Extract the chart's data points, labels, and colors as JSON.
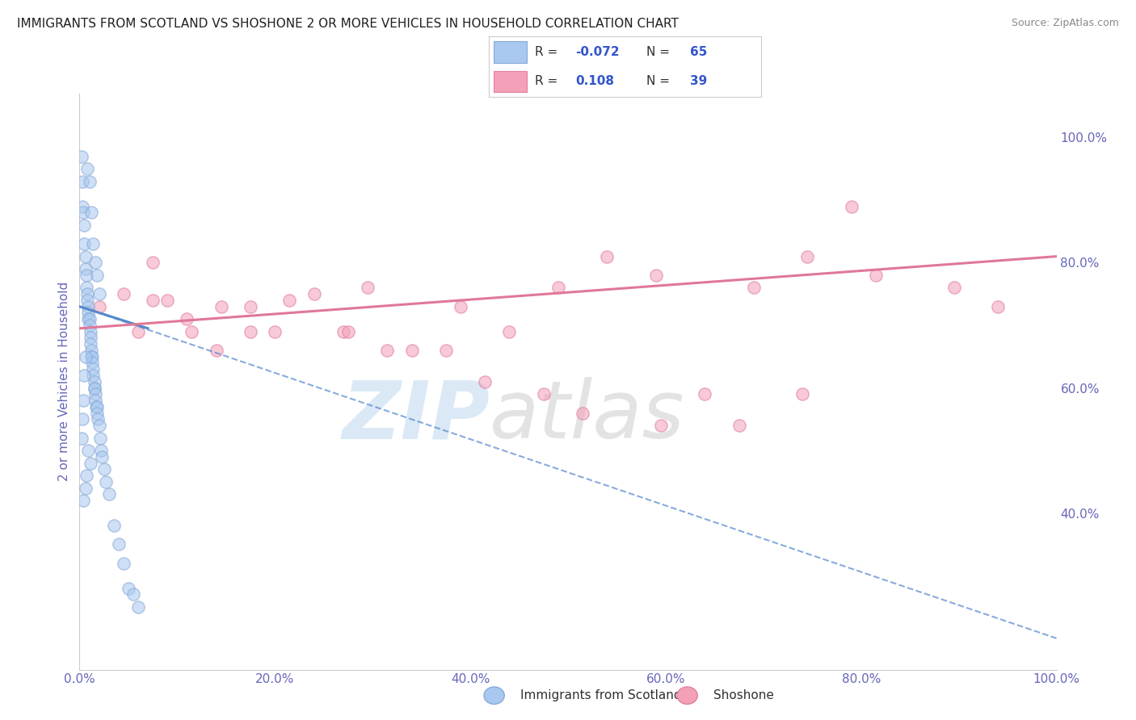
{
  "title": "IMMIGRANTS FROM SCOTLAND VS SHOSHONE 2 OR MORE VEHICLES IN HOUSEHOLD CORRELATION CHART",
  "source": "Source: ZipAtlas.com",
  "ylabel": "2 or more Vehicles in Household",
  "xlim": [
    0,
    1.0
  ],
  "ylim": [
    0.15,
    1.07
  ],
  "xticks": [
    0.0,
    0.1,
    0.2,
    0.3,
    0.4,
    0.5,
    0.6,
    0.7,
    0.8,
    0.9,
    1.0
  ],
  "xticklabels": [
    "0.0%",
    "",
    "20.0%",
    "",
    "40.0%",
    "",
    "60.0%",
    "",
    "80.0%",
    "",
    "100.0%"
  ],
  "yticks_right": [
    1.0,
    0.8,
    0.6,
    0.4
  ],
  "yticklabels_right": [
    "100.0%",
    "80.0%",
    "60.0%",
    "40.0%"
  ],
  "legend_entries": [
    {
      "label": "Immigrants from Scotland",
      "color": "#a8c8f0",
      "R": "-0.072",
      "N": "65"
    },
    {
      "label": "Shoshone",
      "color": "#f4a0b8",
      "R": "0.108",
      "N": "39"
    }
  ],
  "blue_scatter_x": [
    0.002,
    0.003,
    0.003,
    0.004,
    0.005,
    0.005,
    0.006,
    0.006,
    0.007,
    0.007,
    0.008,
    0.008,
    0.009,
    0.009,
    0.009,
    0.01,
    0.01,
    0.011,
    0.011,
    0.011,
    0.012,
    0.012,
    0.013,
    0.013,
    0.014,
    0.014,
    0.015,
    0.015,
    0.015,
    0.016,
    0.016,
    0.017,
    0.018,
    0.018,
    0.019,
    0.02,
    0.021,
    0.022,
    0.023,
    0.025,
    0.027,
    0.03,
    0.035,
    0.04,
    0.045,
    0.05,
    0.055,
    0.06,
    0.008,
    0.01,
    0.012,
    0.014,
    0.016,
    0.018,
    0.02,
    0.006,
    0.005,
    0.004,
    0.003,
    0.002,
    0.009,
    0.011,
    0.007,
    0.006,
    0.004
  ],
  "blue_scatter_y": [
    0.97,
    0.93,
    0.89,
    0.88,
    0.86,
    0.83,
    0.81,
    0.79,
    0.78,
    0.76,
    0.75,
    0.74,
    0.73,
    0.72,
    0.71,
    0.71,
    0.7,
    0.69,
    0.68,
    0.67,
    0.66,
    0.65,
    0.65,
    0.64,
    0.63,
    0.62,
    0.61,
    0.6,
    0.6,
    0.59,
    0.58,
    0.57,
    0.57,
    0.56,
    0.55,
    0.54,
    0.52,
    0.5,
    0.49,
    0.47,
    0.45,
    0.43,
    0.38,
    0.35,
    0.32,
    0.28,
    0.27,
    0.25,
    0.95,
    0.93,
    0.88,
    0.83,
    0.8,
    0.78,
    0.75,
    0.65,
    0.62,
    0.58,
    0.55,
    0.52,
    0.5,
    0.48,
    0.46,
    0.44,
    0.42
  ],
  "pink_scatter_x": [
    0.02,
    0.045,
    0.06,
    0.075,
    0.09,
    0.11,
    0.14,
    0.175,
    0.2,
    0.24,
    0.27,
    0.295,
    0.34,
    0.39,
    0.44,
    0.49,
    0.54,
    0.59,
    0.64,
    0.69,
    0.74,
    0.79,
    0.075,
    0.115,
    0.145,
    0.175,
    0.215,
    0.275,
    0.315,
    0.375,
    0.415,
    0.475,
    0.515,
    0.595,
    0.675,
    0.745,
    0.815,
    0.895,
    0.94
  ],
  "pink_scatter_y": [
    0.73,
    0.75,
    0.69,
    0.8,
    0.74,
    0.71,
    0.66,
    0.73,
    0.69,
    0.75,
    0.69,
    0.76,
    0.66,
    0.73,
    0.69,
    0.76,
    0.81,
    0.78,
    0.59,
    0.76,
    0.59,
    0.89,
    0.74,
    0.69,
    0.73,
    0.69,
    0.74,
    0.69,
    0.66,
    0.66,
    0.61,
    0.59,
    0.56,
    0.54,
    0.54,
    0.81,
    0.78,
    0.76,
    0.73
  ],
  "blue_trend_x": [
    0.0,
    1.0
  ],
  "blue_trend_y": [
    0.73,
    0.2
  ],
  "pink_trend_x": [
    0.0,
    1.0
  ],
  "pink_trend_y": [
    0.695,
    0.81
  ],
  "watermark_zip": "ZIP",
  "watermark_atlas": "atlas",
  "background_color": "#ffffff",
  "scatter_alpha": 0.55,
  "scatter_size": 120,
  "blue_color": "#a8c8f0",
  "pink_color": "#f4a0b8",
  "blue_edge": "#88aad8",
  "pink_edge": "#e080a0",
  "trend_blue": "#5588cc",
  "trend_pink": "#e07898",
  "grid_color": "#cccccc",
  "title_color": "#202020",
  "axis_label_color": "#6666bb",
  "tick_color": "#6666bb"
}
